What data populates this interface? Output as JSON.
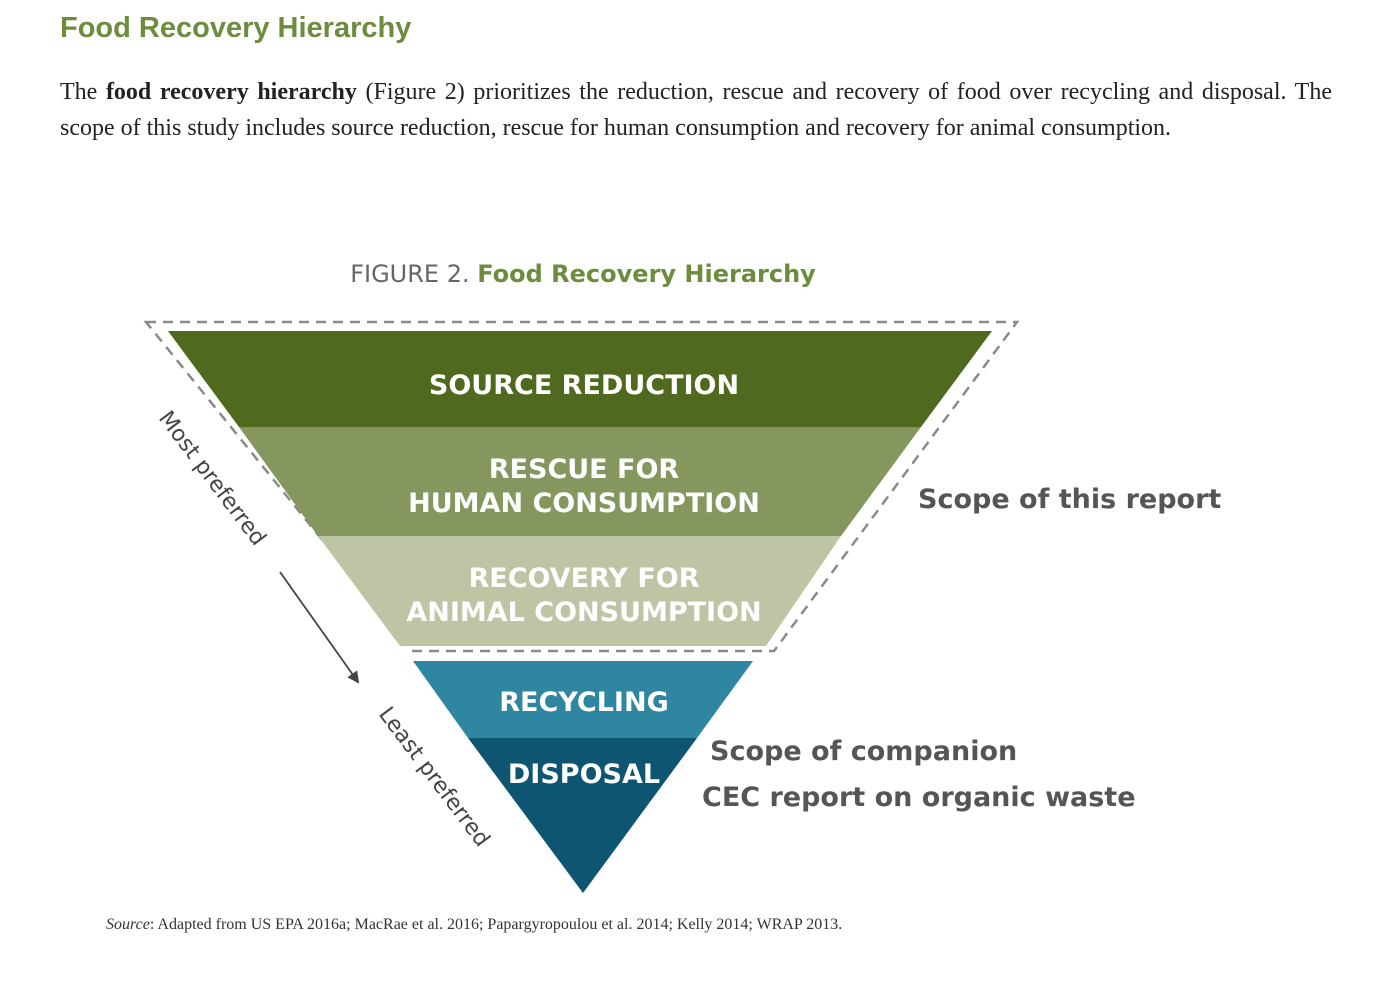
{
  "heading": "Food Recovery Hierarchy",
  "intro": {
    "lead": "The ",
    "term": "food recovery hierarchy",
    "rest": " (Figure 2) prioritizes the reduction, rescue and recovery of food over recycling and disposal. The scope of this study includes source reduction, rescue for human consumption and recovery for animal consumption."
  },
  "figure": {
    "number": "FIGURE 2. ",
    "title": "Food Recovery Hierarchy",
    "levels": [
      {
        "line1": "SOURCE REDUCTION",
        "line2": "",
        "color": "#4f6a1e"
      },
      {
        "line1": "RESCUE FOR",
        "line2": "HUMAN CONSUMPTION",
        "color": "#86965f"
      },
      {
        "line1": "RECOVERY FOR",
        "line2": "ANIMAL CONSUMPTION",
        "color": "#bec5a4"
      },
      {
        "line1": "RECYCLING",
        "line2": "",
        "color": "#2e86a0"
      },
      {
        "line1": "DISPOSAL",
        "line2": "",
        "color": "#0d5570"
      }
    ],
    "scope_report": "Scope of this report",
    "scope_companion_line1": "Scope of companion",
    "scope_companion_line2": "CEC report on organic waste",
    "most_preferred": "Most preferred",
    "least_preferred": "Least preferred"
  },
  "source": {
    "label": "Source",
    "text": ": Adapted from US EPA 2016a; MacRae et al. 2016; Papargyropoulou et al. 2014; Kelly 2014; WRAP 2013."
  }
}
